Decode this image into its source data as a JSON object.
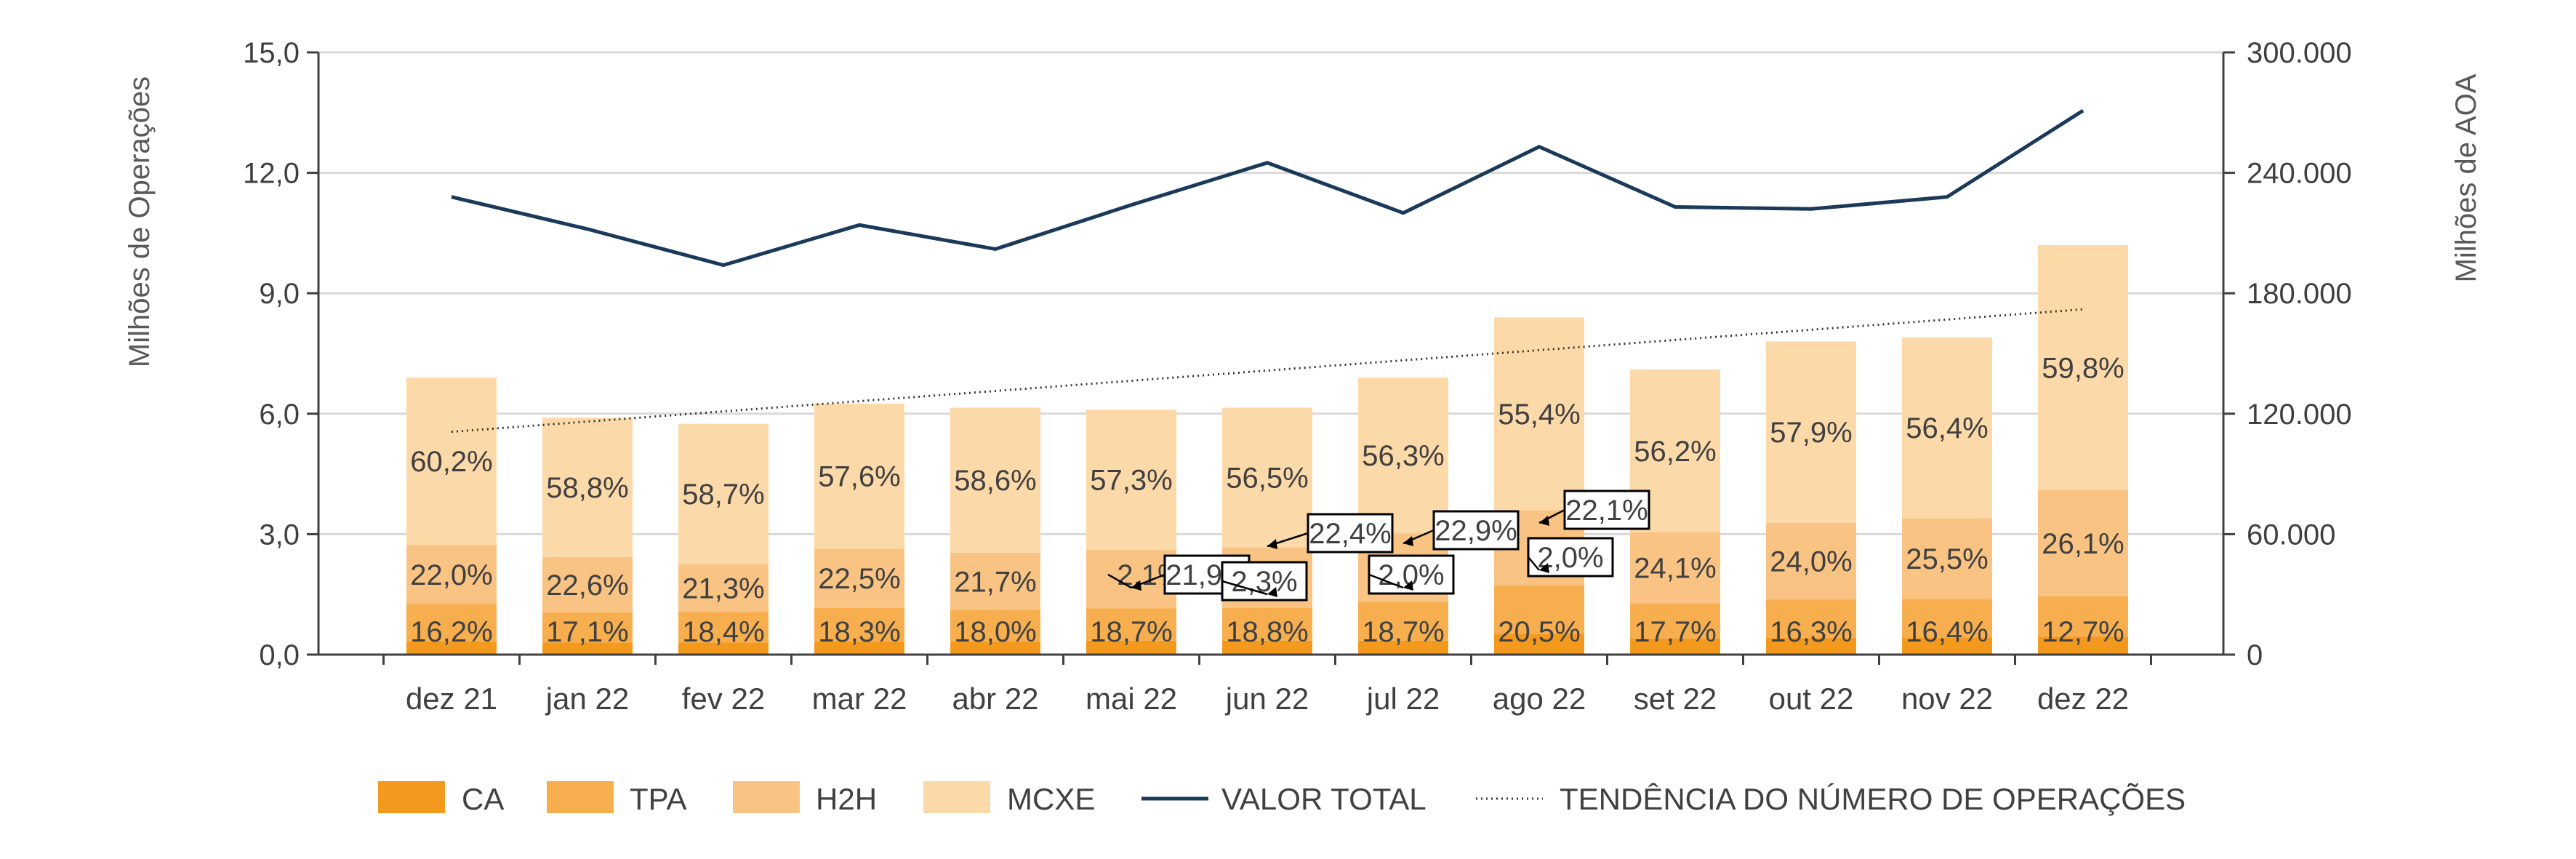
{
  "chart_data": {
    "type": "bar",
    "stacked": true,
    "categories": [
      "dez 21",
      "jan 22",
      "fev 22",
      "mar 22",
      "abr 22",
      "mai 22",
      "jun 22",
      "jul 22",
      "ago 22",
      "set 22",
      "out 22",
      "nov 22",
      "dez 22"
    ],
    "ylabel": "Milhões de Operações",
    "y2label": "Milhões de AOA",
    "ylim": [
      0,
      15
    ],
    "y2lim": [
      0,
      300000
    ],
    "yticks": [
      "0,0",
      "3,0",
      "6,0",
      "9,0",
      "12,0",
      "15,0"
    ],
    "y2ticks": [
      "0",
      "60.000",
      "120.000",
      "180.000",
      "240.000",
      "300.000"
    ],
    "grid": true,
    "legend_position": "bottom",
    "colors": {
      "CA": "#f39a1e",
      "TPA": "#f6ae4f",
      "H2H": "#f9c383",
      "MCXE": "#fcd9a8",
      "VALOR TOTAL": "#1b3a5a",
      "TENDENCIA": "#333333"
    },
    "totals": [
      6.9,
      5.9,
      5.75,
      6.25,
      6.15,
      6.1,
      6.15,
      6.9,
      8.4,
      7.1,
      7.8,
      7.9,
      10.2
    ],
    "series": [
      {
        "name": "CA",
        "values": [
          0.33,
          0.3,
          0.3,
          0.33,
          0.33,
          0.35,
          0.35,
          0.35,
          0.52,
          0.4,
          0.42,
          0.43,
          0.45
        ]
      },
      {
        "name": "TPA",
        "values": [
          0.93,
          0.75,
          0.76,
          0.83,
          0.78,
          0.8,
          0.81,
          0.96,
          1.2,
          0.88,
          0.96,
          0.96,
          1.0
        ]
      },
      {
        "name": "H2H",
        "values": [
          1.47,
          1.38,
          1.2,
          1.48,
          1.43,
          1.46,
          1.51,
          1.71,
          1.88,
          1.77,
          1.9,
          2.01,
          2.65
        ]
      },
      {
        "name": "MCXE",
        "values": [
          4.17,
          3.47,
          3.49,
          3.61,
          3.61,
          3.49,
          3.48,
          3.88,
          4.8,
          4.05,
          4.52,
          4.5,
          6.1
        ]
      }
    ],
    "bar_labels": {
      "MCXE": [
        "60,2%",
        "58,8%",
        "58,7%",
        "57,6%",
        "58,6%",
        "57,3%",
        "56,5%",
        "56,3%",
        "55,4%",
        "56,2%",
        "57,9%",
        "56,4%",
        "59,8%"
      ],
      "H2H": [
        "22,0%",
        "22,6%",
        "21,3%",
        "22,5%",
        "21,7%",
        "21,9%",
        "22,4%",
        "22,9%",
        "22,1%",
        "24,1%",
        "24,0%",
        "25,5%",
        "26,1%"
      ],
      "TPA": [
        "",
        "",
        "",
        "",
        "",
        "2,1%",
        "2,3%",
        "2,0%",
        "2,0%",
        "",
        "",
        "",
        ""
      ],
      "CA": [
        "16,2%",
        "17,1%",
        "18,4%",
        "18,3%",
        "18,0%",
        "18,7%",
        "18,8%",
        "18,7%",
        "20,5%",
        "17,7%",
        "16,3%",
        "16,4%",
        "12,7%"
      ]
    },
    "line": {
      "name": "VALOR TOTAL",
      "axis": "right",
      "values": [
        228000,
        212000,
        194000,
        214000,
        202000,
        224000,
        245000,
        220000,
        253000,
        223000,
        222000,
        228000,
        271000
      ]
    },
    "trend": {
      "name": "TENDÊNCIA DO NÚMERO DE OPERAÇÕES",
      "axis": "left",
      "start": 5.55,
      "end": 8.6
    },
    "legend": [
      "CA",
      "TPA",
      "H2H",
      "MCXE",
      "VALOR TOTAL",
      "TENDÊNCIA DO NÚMERO DE OPERAÇÕES"
    ]
  }
}
